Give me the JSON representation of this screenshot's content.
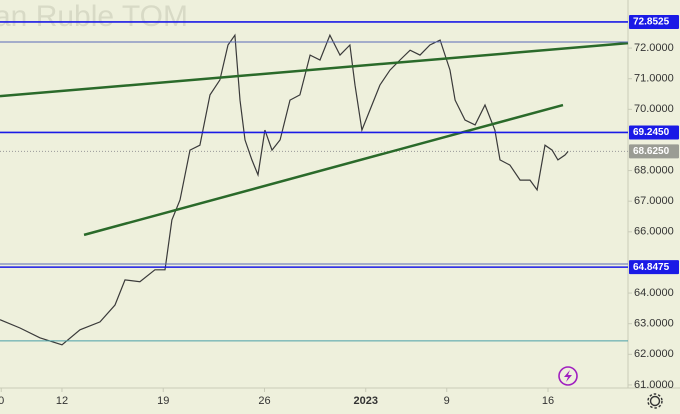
{
  "chart_data": {
    "type": "line",
    "title": "an Ruble TOM",
    "color": "#3a3a3a",
    "x": [
      -3.06,
      -2.07,
      -1.09,
      0,
      0.89,
      1.88,
      2.62,
      3.11,
      3.85,
      4.59,
      5.09,
      5.43,
      5.83,
      6.32,
      6.81,
      7.31,
      7.8,
      8.2,
      8.54,
      8.79,
      9.04,
      9.38,
      9.68,
      10.02,
      10.37,
      10.77,
      11.26,
      11.75,
      12.25,
      12.74,
      13.23,
      13.73,
      14.22,
      14.47,
      14.81,
      15.21,
      15.7,
      16.2,
      16.69,
      17.19,
      17.68,
      18.17,
      18.67,
      19.16,
      19.41,
      19.9,
      20.4,
      20.89,
      21.38,
      21.63,
      22.12,
      22.62,
      23.11,
      23.46,
      23.85,
      24.2,
      24.49,
      24.84,
      24.99
    ],
    "values": [
      63.13,
      62.86,
      62.54,
      62.31,
      62.8,
      63.06,
      63.61,
      64.43,
      64.37,
      64.76,
      64.76,
      66.39,
      67.04,
      68.67,
      68.83,
      70.47,
      70.96,
      72.1,
      72.42,
      70.3,
      69.0,
      68.35,
      67.86,
      69.32,
      68.67,
      69.0,
      70.3,
      70.47,
      71.77,
      71.61,
      72.42,
      71.77,
      72.1,
      70.79,
      69.32,
      69.98,
      70.79,
      71.28,
      71.61,
      71.93,
      71.77,
      72.1,
      72.26,
      71.28,
      70.3,
      69.65,
      69.49,
      70.14,
      69.32,
      68.35,
      68.18,
      67.69,
      67.69,
      67.37,
      68.83,
      68.67,
      68.35,
      68.51,
      68.625
    ],
    "xlim": [
      -3.06,
      27.95
    ],
    "ylim": [
      60.9,
      73.57
    ],
    "xticks": [
      {
        "value": -3,
        "label": "0"
      },
      {
        "value": 0,
        "label": "12"
      },
      {
        "value": 5,
        "label": "19"
      },
      {
        "value": 10,
        "label": "26"
      },
      {
        "value": 15,
        "label": "2023"
      },
      {
        "value": 19,
        "label": "9"
      },
      {
        "value": 24,
        "label": "16"
      }
    ],
    "yticks": [
      {
        "value": 61,
        "label": "61.0000"
      },
      {
        "value": 62,
        "label": "62.0000"
      },
      {
        "value": 63,
        "label": "63.0000"
      },
      {
        "value": 64,
        "label": "64.0000"
      },
      {
        "value": 66,
        "label": "66.0000"
      },
      {
        "value": 67,
        "label": "67.0000"
      },
      {
        "value": 68,
        "label": "68.0000"
      },
      {
        "value": 70,
        "label": "70.0000"
      },
      {
        "value": 71,
        "label": "71.0000"
      },
      {
        "value": 72,
        "label": "72.0000"
      }
    ],
    "levels": [
      {
        "value": 72.8525,
        "color": "#1a1ae6"
      },
      {
        "value": 72.2,
        "color": "#5a6ab8"
      },
      {
        "value": {
          "value": 69.245,
          "label": "69.2450"
        },
        "color": "#1a1ae6"
      },
      {
        "value": 64.95,
        "color": "#5a6ab8"
      },
      {
        "value": 64.8475,
        "color": "#1a1ae6"
      },
      {
        "value": 62.44,
        "color": "#4aa0a8"
      }
    ],
    "last_price": {
      "value": 68.625,
      "label": "68.6250"
    },
    "trendlines": [
      {
        "x": [
          -3.06,
          27.95
        ],
        "values": [
          70.43,
          72.16
        ],
        "color": "#2a6a2a"
      },
      {
        "x": [
          1.09,
          24.74
        ],
        "values": [
          65.9,
          70.14
        ],
        "color": "#2a6a2a"
      }
    ]
  }
}
